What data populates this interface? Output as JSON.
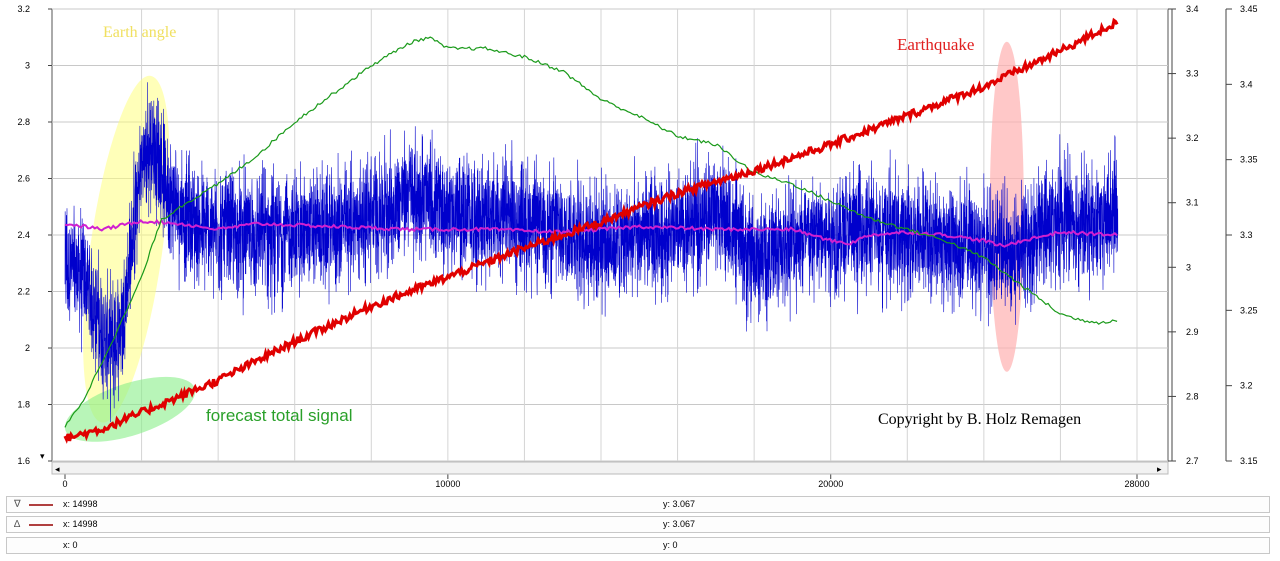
{
  "chart_data": {
    "type": "line",
    "x": {
      "range": [
        0,
        28000
      ],
      "ticks": [
        0,
        10000,
        20000,
        28000
      ]
    },
    "y_left": {
      "range": [
        1.6,
        3.2
      ],
      "ticks": [
        1.6,
        1.8,
        2,
        2.2,
        2.4,
        2.6,
        2.8,
        3,
        3.2
      ]
    },
    "y_right1": {
      "range": [
        2.7,
        3.4
      ],
      "ticks": [
        2.7,
        2.8,
        2.9,
        3,
        3.1,
        3.2,
        3.3,
        3.4
      ]
    },
    "y_right2": {
      "range": [
        3.15,
        3.45
      ],
      "ticks": [
        3.15,
        3.2,
        3.25,
        3.3,
        3.35,
        3.4,
        3.45
      ]
    },
    "grid": true,
    "series": [
      {
        "color": "#0000cc",
        "axis": "left",
        "kind": "noise",
        "x": [
          0,
          500,
          1000,
          1200,
          1500,
          2000,
          2300,
          2800,
          3500,
          5000,
          7000,
          8500,
          9000,
          10000,
          12000,
          14000,
          16000,
          17000,
          18000,
          19000,
          20000,
          21000,
          22000,
          23000,
          24000,
          24800,
          25200,
          26000,
          27000,
          27500
        ],
        "y": [
          2.3,
          2.25,
          2.05,
          2.0,
          2.1,
          2.65,
          2.72,
          2.52,
          2.42,
          2.4,
          2.42,
          2.5,
          2.55,
          2.48,
          2.45,
          2.38,
          2.4,
          2.5,
          2.3,
          2.38,
          2.4,
          2.42,
          2.4,
          2.38,
          2.36,
          2.32,
          2.38,
          2.48,
          2.42,
          2.5
        ]
      },
      {
        "color": "#e00000",
        "axis": "right1",
        "x": [
          0,
          1000,
          2000,
          3000,
          4000,
          6000,
          8000,
          10000,
          12000,
          14000,
          16000,
          18000,
          20000,
          22000,
          24000,
          26000,
          27500
        ],
        "y": [
          2.735,
          2.75,
          2.775,
          2.8,
          2.825,
          2.885,
          2.94,
          2.985,
          3.03,
          3.07,
          3.115,
          3.15,
          3.19,
          3.235,
          3.28,
          3.335,
          3.38
        ]
      },
      {
        "color": "#1a9a1a",
        "axis": "left",
        "x": [
          0,
          500,
          1000,
          1500,
          2000,
          2500,
          3000,
          4000,
          5000,
          6000,
          7000,
          8000,
          9000,
          9500,
          10000,
          11000,
          12000,
          13000,
          14000,
          15000,
          16000,
          17000,
          18000,
          19000,
          20000,
          21000,
          22000,
          23000,
          24000,
          25000,
          26000,
          26500,
          27000,
          27500
        ],
        "y": [
          1.72,
          1.82,
          1.96,
          2.1,
          2.25,
          2.45,
          2.5,
          2.58,
          2.68,
          2.8,
          2.9,
          3.0,
          3.08,
          3.1,
          3.06,
          3.06,
          3.03,
          2.98,
          2.88,
          2.82,
          2.75,
          2.72,
          2.62,
          2.58,
          2.52,
          2.46,
          2.42,
          2.38,
          2.32,
          2.22,
          2.12,
          2.1,
          2.09,
          2.1
        ]
      },
      {
        "color": "#d020d0",
        "axis": "left",
        "x": [
          0,
          1000,
          2000,
          3000,
          4000,
          5000,
          7000,
          9000,
          11000,
          13000,
          15000,
          17000,
          19000,
          20000,
          20500,
          21000,
          22000,
          23000,
          24000,
          24500,
          25000,
          26000,
          27500
        ],
        "y": [
          2.44,
          2.42,
          2.45,
          2.44,
          2.42,
          2.44,
          2.43,
          2.42,
          2.42,
          2.41,
          2.43,
          2.42,
          2.42,
          2.38,
          2.37,
          2.4,
          2.41,
          2.4,
          2.38,
          2.36,
          2.38,
          2.41,
          2.4
        ]
      }
    ],
    "annotations": [
      {
        "text": "Earth angle",
        "color": "#f0e060"
      },
      {
        "text": "Earthquake",
        "color": "#e02020"
      },
      {
        "text": "forecast total signal",
        "color": "#2aa02a"
      },
      {
        "text": "Copyright by B. Holz Remagen",
        "color": "#000000"
      }
    ],
    "highlight_colors": [
      "#ffff80",
      "#ffb0b0",
      "#88ee88"
    ]
  },
  "cursor": {
    "rows": [
      {
        "marker": "∇",
        "x": "x: 14998",
        "y": "y: 3.067"
      },
      {
        "marker": "∆",
        "x": "x: 14998",
        "y": "y: 3.067"
      },
      {
        "marker": "",
        "x": "x: 0",
        "y": "y: 0"
      }
    ]
  },
  "scroll": {
    "left": "◂",
    "right": "▸",
    "down": "▾"
  }
}
